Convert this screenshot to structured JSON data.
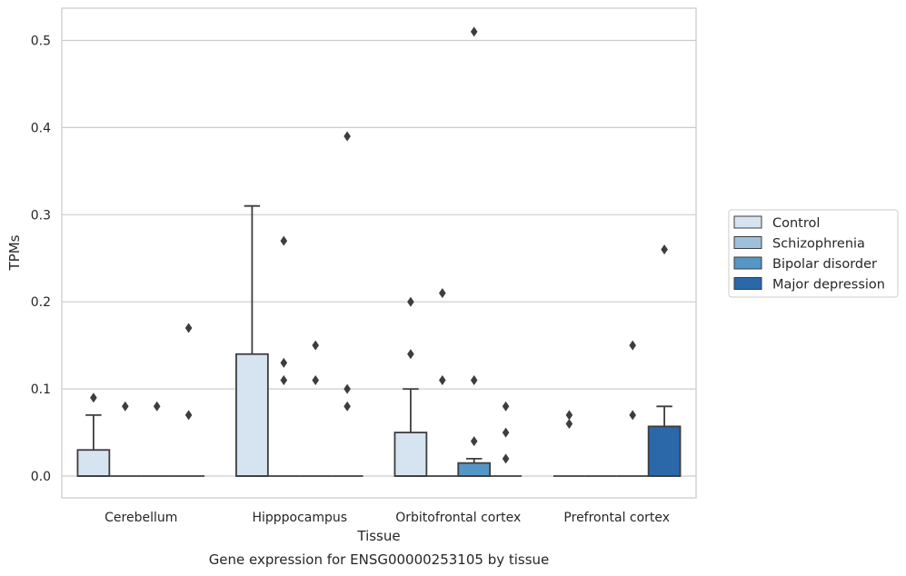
{
  "chart_data": {
    "type": "boxplot",
    "title": "",
    "caption": "Gene expression for ENSG00000253105 by tissue",
    "xlabel": "Tissue",
    "ylabel": "TPMs",
    "ylim": [
      -0.025,
      0.537
    ],
    "yticks": [
      0.0,
      0.1,
      0.2,
      0.3,
      0.4,
      0.5
    ],
    "ytick_labels": [
      "0.0",
      "0.1",
      "0.2",
      "0.3",
      "0.4",
      "0.5"
    ],
    "grid": "y",
    "legend_placement": "right",
    "categories": [
      "Cerebellum",
      "Hipppocampus",
      "Orbitofrontal cortex",
      "Prefrontal cortex"
    ],
    "series": [
      {
        "name": "Control",
        "color": "#d6e4f2",
        "boxes": [
          {
            "q1": 0.0,
            "median": 0.0,
            "q3": 0.03,
            "whisker_low": 0.0,
            "whisker_high": 0.07,
            "outliers": [
              0.09
            ]
          },
          {
            "q1": 0.0,
            "median": 0.0,
            "q3": 0.14,
            "whisker_low": 0.0,
            "whisker_high": 0.31,
            "outliers": []
          },
          {
            "q1": 0.0,
            "median": 0.0,
            "q3": 0.05,
            "whisker_low": 0.0,
            "whisker_high": 0.1,
            "outliers": [
              0.14,
              0.2
            ]
          },
          {
            "q1": 0.0,
            "median": 0.0,
            "q3": 0.0,
            "whisker_low": 0.0,
            "whisker_high": 0.0,
            "outliers": [
              0.06,
              0.07
            ]
          }
        ]
      },
      {
        "name": "Schizophrenia",
        "color": "#9dc1dd",
        "boxes": [
          {
            "q1": 0.0,
            "median": 0.0,
            "q3": 0.0,
            "whisker_low": 0.0,
            "whisker_high": 0.0,
            "outliers": [
              0.08
            ]
          },
          {
            "q1": 0.0,
            "median": 0.0,
            "q3": 0.0,
            "whisker_low": 0.0,
            "whisker_high": 0.0,
            "outliers": [
              0.11,
              0.13,
              0.27
            ]
          },
          {
            "q1": 0.0,
            "median": 0.0,
            "q3": 0.0,
            "whisker_low": 0.0,
            "whisker_high": 0.0,
            "outliers": [
              0.11,
              0.21
            ]
          },
          {
            "q1": 0.0,
            "median": 0.0,
            "q3": 0.0,
            "whisker_low": 0.0,
            "whisker_high": 0.0,
            "outliers": []
          }
        ]
      },
      {
        "name": "Bipolar disorder",
        "color": "#5596c6",
        "boxes": [
          {
            "q1": 0.0,
            "median": 0.0,
            "q3": 0.0,
            "whisker_low": 0.0,
            "whisker_high": 0.0,
            "outliers": [
              0.08
            ]
          },
          {
            "q1": 0.0,
            "median": 0.0,
            "q3": 0.0,
            "whisker_low": 0.0,
            "whisker_high": 0.0,
            "outliers": [
              0.11,
              0.15
            ]
          },
          {
            "q1": 0.0,
            "median": 0.0,
            "q3": 0.015,
            "whisker_low": 0.0,
            "whisker_high": 0.02,
            "outliers": [
              0.04,
              0.11,
              0.51
            ]
          },
          {
            "q1": 0.0,
            "median": 0.0,
            "q3": 0.0,
            "whisker_low": 0.0,
            "whisker_high": 0.0,
            "outliers": [
              0.07,
              0.15
            ]
          }
        ]
      },
      {
        "name": "Major depression",
        "color": "#2a68a9",
        "boxes": [
          {
            "q1": 0.0,
            "median": 0.0,
            "q3": 0.0,
            "whisker_low": 0.0,
            "whisker_high": 0.0,
            "outliers": [
              0.07,
              0.17
            ]
          },
          {
            "q1": 0.0,
            "median": 0.0,
            "q3": 0.0,
            "whisker_low": 0.0,
            "whisker_high": 0.0,
            "outliers": [
              0.08,
              0.1,
              0.39
            ]
          },
          {
            "q1": 0.0,
            "median": 0.0,
            "q3": 0.0,
            "whisker_low": 0.0,
            "whisker_high": 0.0,
            "outliers": [
              0.02,
              0.05,
              0.08
            ]
          },
          {
            "q1": 0.0,
            "median": 0.0,
            "q3": 0.057,
            "whisker_low": 0.0,
            "whisker_high": 0.08,
            "outliers": [
              0.26
            ]
          }
        ]
      }
    ]
  }
}
